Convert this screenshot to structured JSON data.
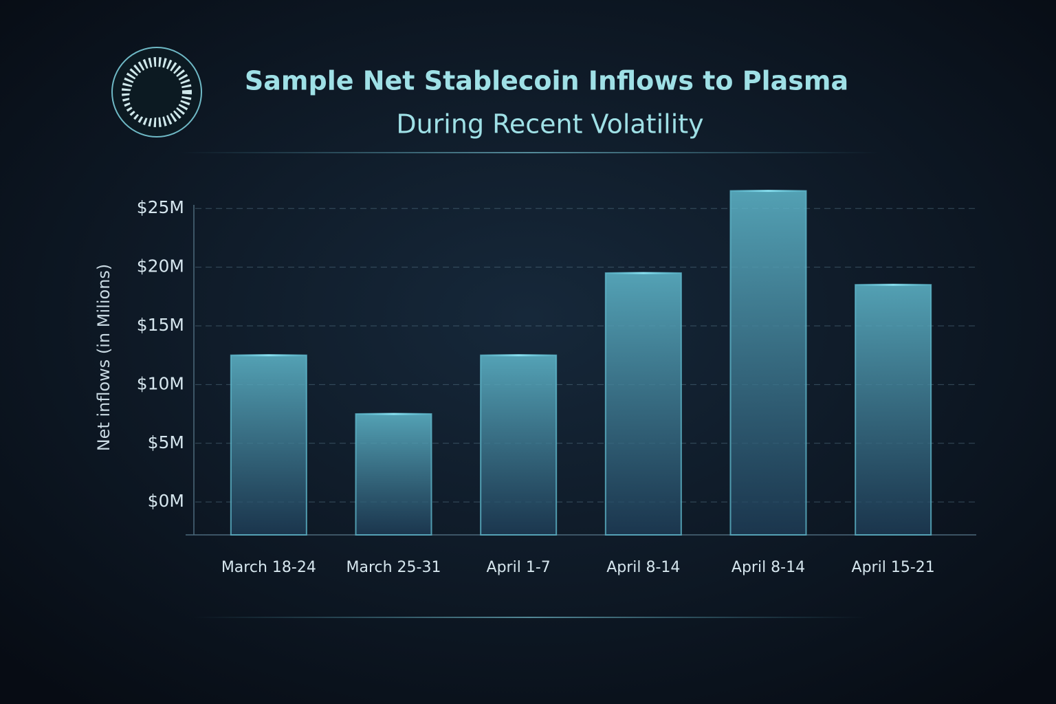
{
  "chart_data": {
    "type": "bar",
    "title": [
      "Sample Net Stablecoin Inflows to Plasma",
      "During Recent Volatility"
    ],
    "y_label": "Net inflows (in Milions)",
    "categories": [
      "March 18-24",
      "March 25-31",
      "April 1-7",
      "April 8-14",
      "April 8-14",
      "April 15-21"
    ],
    "values": [
      12.5,
      7.5,
      12.5,
      19.5,
      26.5,
      18.5
    ],
    "color": "#5fb8cc",
    "ylim": [
      -2.8,
      28
    ],
    "yticks": [
      {
        "value": 0,
        "label": "$0M"
      },
      {
        "value": 5,
        "label": "$5M"
      },
      {
        "value": 10,
        "label": "$10M"
      },
      {
        "value": 15,
        "label": "$15M"
      },
      {
        "value": 20,
        "label": "$20M"
      },
      {
        "value": 25,
        "label": "$25M"
      }
    ],
    "grid": true
  }
}
